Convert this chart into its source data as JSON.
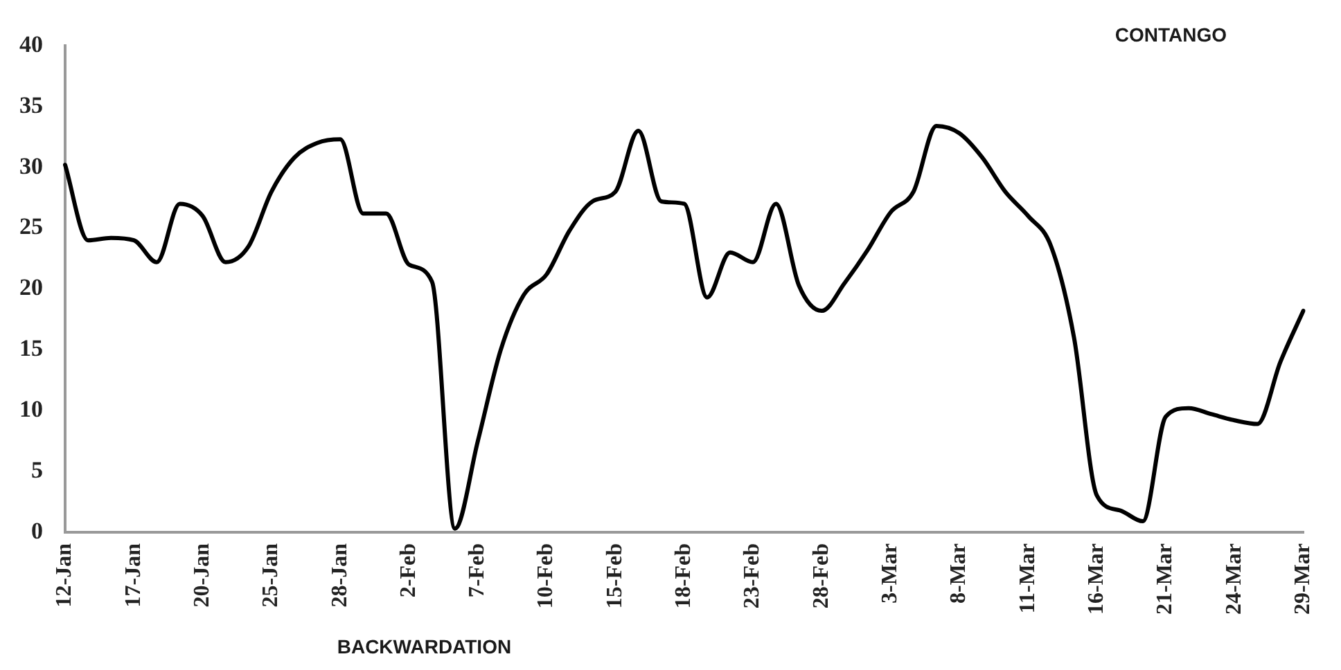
{
  "chart_data": {
    "type": "line",
    "categories": [
      "12-Jan",
      null,
      null,
      "17-Jan",
      null,
      null,
      "20-Jan",
      null,
      null,
      "25-Jan",
      null,
      null,
      "28-Jan",
      null,
      null,
      "2-Feb",
      null,
      null,
      "7-Feb",
      null,
      null,
      "10-Feb",
      null,
      null,
      "15-Feb",
      null,
      null,
      "18-Feb",
      null,
      null,
      "23-Feb",
      null,
      null,
      "28-Feb",
      null,
      null,
      "3-Mar",
      null,
      null,
      "8-Mar",
      null,
      null,
      "11-Mar",
      null,
      null,
      "16-Mar",
      null,
      null,
      "21-Mar",
      null,
      null,
      "24-Mar",
      null,
      null,
      "29-Mar"
    ],
    "series": [
      {
        "color": "#000000",
        "values": [
          30.2,
          24,
          24.2,
          24,
          22.2,
          27,
          26,
          22.2,
          23.5,
          28,
          30.8,
          32,
          32.3,
          26.2,
          26.2,
          22,
          20.6,
          0.3,
          7.5,
          15,
          19.5,
          21.2,
          24.8,
          27.2,
          28,
          33,
          27.2,
          27,
          19.3,
          23,
          22.2,
          27,
          20.3,
          18.2,
          20.5,
          23.2,
          26.3,
          28,
          33.4,
          32.8,
          30.8,
          28,
          26,
          23.5,
          16,
          3,
          1.8,
          0.9,
          9.5,
          10.2,
          9.7,
          9.2,
          8.9,
          14,
          18.2
        ]
      }
    ],
    "ylim": [
      0,
      40
    ],
    "yticks": [
      0,
      5,
      10,
      15,
      20,
      25,
      30,
      35,
      40
    ],
    "grid": false,
    "legend": false,
    "marker": "none",
    "line_style": "solid",
    "annotations": [
      "CONTANGO",
      "BACKWARDATION"
    ]
  }
}
